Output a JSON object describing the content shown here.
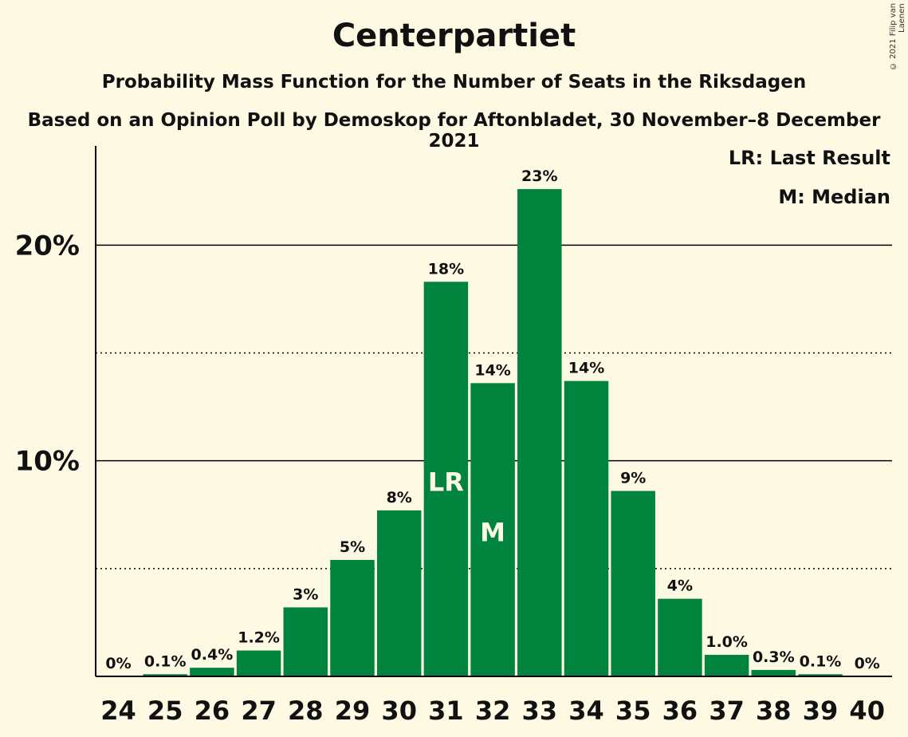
{
  "header": {
    "title": "Centerpartiet",
    "subtitle": "Probability Mass Function for the Number of Seats in the Riksdagen",
    "subtitle2": "Based on an Opinion Poll by Demoskop for Aftonbladet, 30 November–8 December 2021",
    "copyright": "© 2021 Filip van Laenen"
  },
  "legend": {
    "last_result": "LR: Last Result",
    "median": "M: Median"
  },
  "colors": {
    "bar": "#00843d",
    "background": "#fef9e3"
  },
  "chart_data": {
    "type": "bar",
    "categories": [
      "24",
      "25",
      "26",
      "27",
      "28",
      "29",
      "30",
      "31",
      "32",
      "33",
      "34",
      "35",
      "36",
      "37",
      "38",
      "39",
      "40"
    ],
    "values": [
      0,
      0.1,
      0.4,
      1.2,
      3.2,
      5.4,
      7.7,
      18.3,
      13.6,
      22.6,
      13.7,
      8.6,
      3.6,
      1.0,
      0.3,
      0.1,
      0
    ],
    "value_labels": [
      "0%",
      "0.1%",
      "0.4%",
      "1.2%",
      "3%",
      "5%",
      "8%",
      "18%",
      "14%",
      "23%",
      "14%",
      "9%",
      "4%",
      "1.0%",
      "0.3%",
      "0.1%",
      "0%"
    ],
    "ylim": [
      0,
      24.6
    ],
    "yticks": [
      {
        "value": 10,
        "label": "10%"
      },
      {
        "value": 20,
        "label": "20%"
      }
    ],
    "dotted_gridlines": [
      5,
      15
    ],
    "markers": [
      {
        "category": "31",
        "label": "LR"
      },
      {
        "category": "32",
        "label": "M"
      }
    ],
    "legend_placement": "top-right"
  }
}
